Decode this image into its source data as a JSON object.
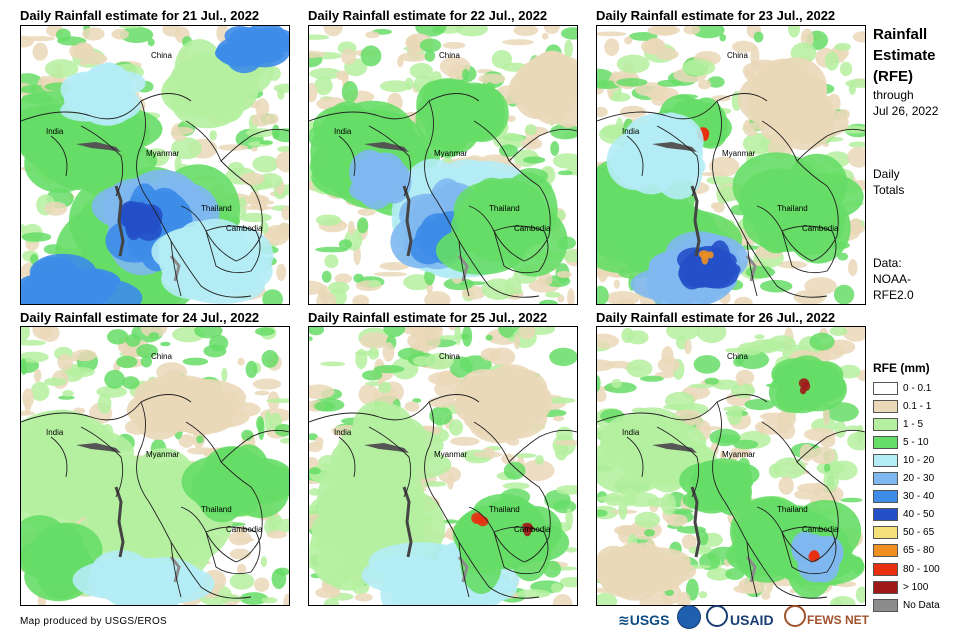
{
  "panels": [
    {
      "title": "Daily Rainfall estimate for 21 Jul., 2022"
    },
    {
      "title": "Daily Rainfall estimate for 22 Jul., 2022"
    },
    {
      "title": "Daily Rainfall estimate for 23 Jul., 2022"
    },
    {
      "title": "Daily Rainfall estimate for 24 Jul., 2022"
    },
    {
      "title": "Daily Rainfall estimate for 25 Jul., 2022"
    },
    {
      "title": "Daily Rainfall estimate for 26 Jul., 2022"
    }
  ],
  "map_labels": {
    "china": "China",
    "india": "India",
    "myanmar": "Myanmar",
    "thailand": "Thailand",
    "cambodia": "Cambodia"
  },
  "sidebar": {
    "title_line1": "Rainfall",
    "title_line2": "Estimate",
    "title_line3": "(RFE)",
    "through": "through",
    "date": "Jul 26, 2022",
    "daily1": "Daily",
    "daily2": "Totals",
    "data1": "Data:",
    "data2": "NOAA-",
    "data3": "RFE2.0"
  },
  "legend": {
    "title": "RFE (mm)",
    "items": [
      {
        "label": "0 - 0.1",
        "color": "#ffffff"
      },
      {
        "label": "0.1 - 1",
        "color": "#ead8b8"
      },
      {
        "label": "1 - 5",
        "color": "#b5f0a0"
      },
      {
        "label": "5 - 10",
        "color": "#66dd66"
      },
      {
        "label": "10 - 20",
        "color": "#b4ecf5"
      },
      {
        "label": "20 - 30",
        "color": "#7fb8f0"
      },
      {
        "label": "30 - 40",
        "color": "#3c8ce8"
      },
      {
        "label": "40 - 50",
        "color": "#2350c8"
      },
      {
        "label": "50 - 65",
        "color": "#f5e07a"
      },
      {
        "label": "65 - 80",
        "color": "#f09020"
      },
      {
        "label": "80 - 100",
        "color": "#e83010"
      },
      {
        "label": "> 100",
        "color": "#a01818"
      },
      {
        "label": "No Data",
        "color": "#8c8c8c"
      }
    ]
  },
  "footer": {
    "credit": "Map produced by USGS/EROS"
  },
  "logos": {
    "usgs": "≋USGS",
    "usaid": "USAID",
    "fews": "FEWS NET"
  }
}
